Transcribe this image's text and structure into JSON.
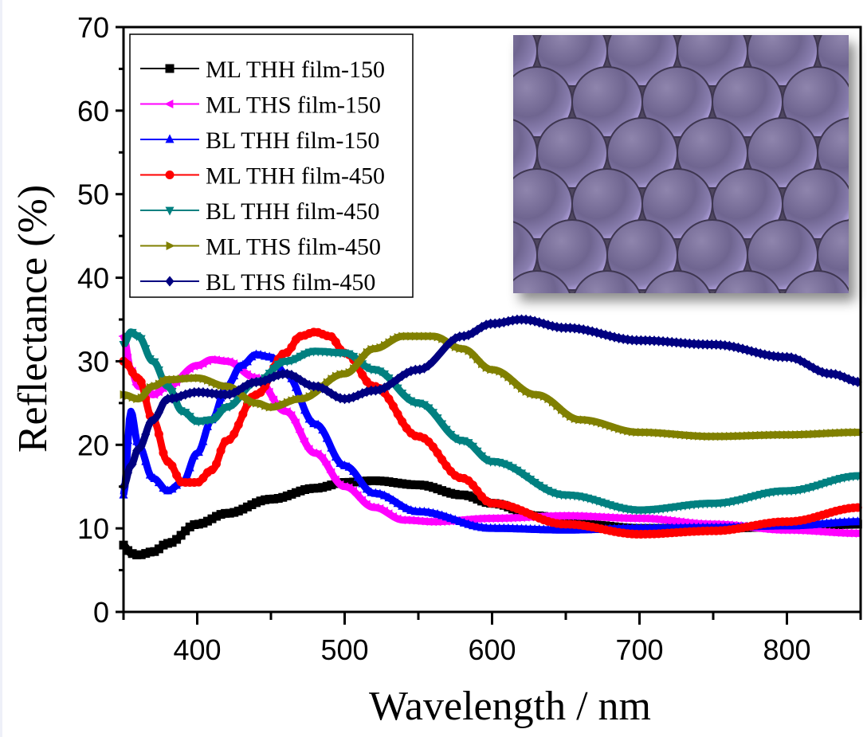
{
  "chart_data": {
    "type": "line",
    "title": "",
    "xlabel": "Wavelength / nm",
    "ylabel": "Reflectance (%)",
    "xlim": [
      350,
      850
    ],
    "ylim": [
      0,
      70
    ],
    "xticks": [
      400,
      500,
      600,
      700,
      800
    ],
    "xtick_labels": [
      "400",
      "500",
      "600",
      "700",
      "800"
    ],
    "yticks": [
      0,
      10,
      20,
      30,
      40,
      50,
      60,
      70
    ],
    "ytick_labels": [
      "0",
      "10",
      "20",
      "30",
      "40",
      "50",
      "60",
      "70"
    ],
    "grid": false,
    "legend_position": "top-left",
    "inset": "SEM micrograph of close-packed hemispherical particles (purple tint)",
    "series": [
      {
        "name": "ML THH film-150",
        "color": "#000000",
        "marker": "square",
        "x": [
          350,
          355,
          360,
          370,
          380,
          400,
          420,
          450,
          480,
          500,
          520,
          550,
          580,
          600,
          630,
          660,
          700,
          750,
          800,
          850
        ],
        "y": [
          8,
          7,
          6.8,
          7.2,
          8.2,
          10.5,
          11.8,
          13.5,
          14.8,
          15.5,
          15.7,
          15.2,
          14,
          13,
          11.5,
          10.5,
          10,
          10,
          10.2,
          10.5
        ]
      },
      {
        "name": "ML THS film-150",
        "color": "#ff00ff",
        "marker": "triangle-left",
        "x": [
          350,
          355,
          360,
          370,
          380,
          400,
          410,
          420,
          440,
          460,
          480,
          500,
          520,
          540,
          560,
          600,
          650,
          700,
          750,
          800,
          850
        ],
        "y": [
          33,
          29,
          27,
          26,
          27,
          29.5,
          30.2,
          30,
          28,
          24,
          19,
          15,
          12.5,
          11,
          10.8,
          11.2,
          11.5,
          11.2,
          10.5,
          9.8,
          9.4
        ]
      },
      {
        "name": "BL THH film-150",
        "color": "#0000ff",
        "marker": "triangle-up",
        "x": [
          350,
          355,
          360,
          370,
          380,
          390,
          400,
          410,
          420,
          430,
          440,
          450,
          460,
          480,
          500,
          520,
          550,
          600,
          650,
          700,
          750,
          800,
          850
        ],
        "y": [
          14,
          24,
          20,
          16,
          14.5,
          15.5,
          19,
          23,
          27,
          29.5,
          30.8,
          30.5,
          28.5,
          22.5,
          17.5,
          14.2,
          12,
          10,
          9.8,
          10,
          10.1,
          10.3,
          10.8
        ]
      },
      {
        "name": "ML THH film-450",
        "color": "#ff0000",
        "marker": "circle",
        "x": [
          350,
          360,
          370,
          380,
          390,
          400,
          410,
          420,
          440,
          460,
          470,
          480,
          490,
          500,
          520,
          550,
          580,
          600,
          650,
          700,
          750,
          800,
          850
        ],
        "y": [
          30,
          28,
          23,
          18,
          15.5,
          15.5,
          17,
          20.5,
          26,
          31,
          33,
          33.5,
          33,
          31,
          27,
          21,
          16,
          13,
          10.5,
          9.3,
          9.7,
          10.8,
          12.5
        ]
      },
      {
        "name": "BL THH film-450",
        "color": "#008080",
        "marker": "triangle-down",
        "x": [
          350,
          355,
          360,
          370,
          380,
          390,
          400,
          410,
          420,
          440,
          460,
          480,
          500,
          520,
          550,
          580,
          600,
          650,
          700,
          750,
          800,
          850
        ],
        "y": [
          32,
          33.5,
          33,
          30,
          27,
          24,
          22.8,
          23,
          24.5,
          27.5,
          30,
          31.2,
          31,
          29,
          25,
          20.5,
          18,
          14,
          12.2,
          13,
          14.5,
          16.3
        ]
      },
      {
        "name": "ML THS film-450",
        "color": "#808000",
        "marker": "triangle-right",
        "x": [
          350,
          360,
          370,
          380,
          400,
          420,
          440,
          450,
          470,
          500,
          520,
          540,
          560,
          580,
          600,
          630,
          660,
          700,
          750,
          800,
          850
        ],
        "y": [
          26,
          25.5,
          27,
          27.8,
          28,
          27,
          25,
          24.5,
          25.5,
          28.5,
          31.5,
          33,
          33,
          31.5,
          29,
          26,
          23,
          21.5,
          21,
          21.2,
          21.5
        ]
      },
      {
        "name": "BL THS film-450",
        "color": "#000080",
        "marker": "diamond",
        "x": [
          350,
          355,
          360,
          370,
          380,
          400,
          420,
          440,
          460,
          480,
          500,
          520,
          550,
          580,
          600,
          620,
          650,
          700,
          750,
          800,
          830,
          850
        ],
        "y": [
          15,
          17.5,
          19.5,
          23,
          25.5,
          26.3,
          26,
          27.5,
          28.5,
          27,
          25.5,
          26.5,
          29,
          33,
          34.5,
          35,
          34,
          32.5,
          32,
          30.5,
          28.5,
          27.5
        ]
      }
    ]
  }
}
